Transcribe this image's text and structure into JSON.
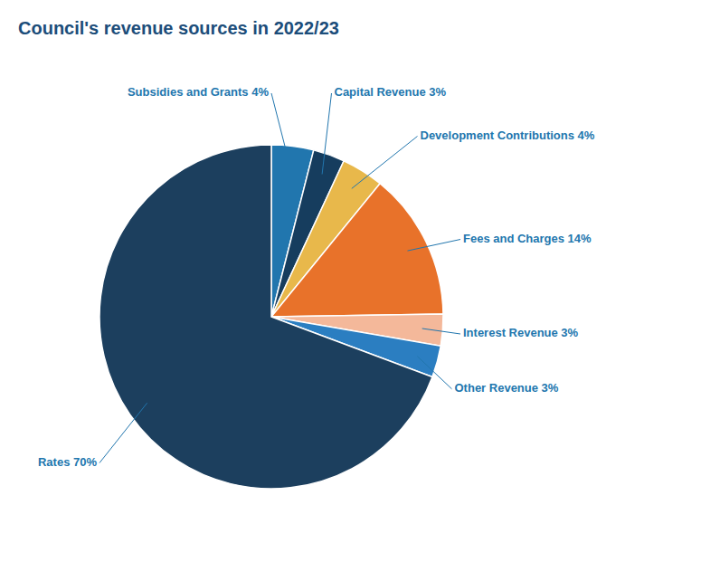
{
  "chart_data": {
    "type": "pie",
    "title": "Council's revenue sources in 2022/23",
    "categories": [
      "Subsidies and Grants 4%",
      "Capital Revenue 3%",
      "Development Contributions 4%",
      "Fees and Charges 14%",
      "Interest Revenue 3%",
      "Other Revenue 3%",
      "Rates 70%"
    ],
    "values": [
      4,
      3,
      4,
      14,
      3,
      3,
      70
    ],
    "colors": [
      "#2176ae",
      "#163d5e",
      "#e8b84b",
      "#e8722a",
      "#f4b89a",
      "#2b7ec1",
      "#1c3f5e"
    ]
  }
}
